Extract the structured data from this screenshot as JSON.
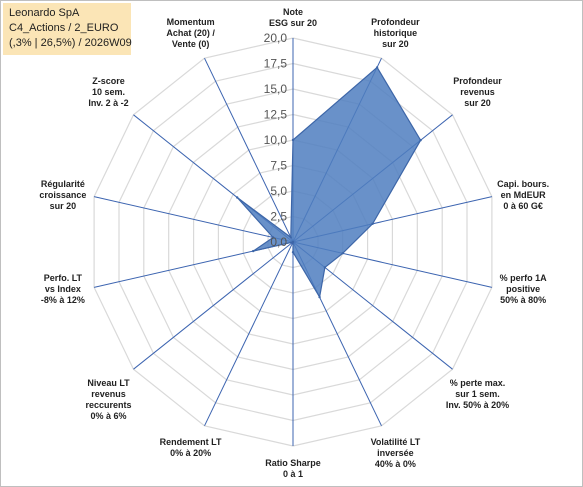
{
  "title_box": {
    "line1": "Leonardo SpA",
    "line2": "C4_Actions / 2_EURO",
    "line3": "(,3% | 26,5%) / 2026W09"
  },
  "chart_data": {
    "type": "radar",
    "rmin": 0,
    "rmax": 20,
    "tick_step": 2.5,
    "tick_labels": [
      "0,0",
      "2,5",
      "5,0",
      "7,5",
      "10,0",
      "12,5",
      "15,0",
      "17,5",
      "20,0"
    ],
    "grid": true,
    "fill_color": "#4f7ec0",
    "line_color": "#3d66a8",
    "grid_color": "#d9d9d9",
    "spoke_color": "#3c64b0",
    "axes": [
      {
        "label": [
          "Note",
          "ESG sur 20"
        ],
        "value": 10
      },
      {
        "label": [
          "Profondeur",
          "historique",
          "sur 20"
        ],
        "value": 19
      },
      {
        "label": [
          "Profondeur",
          "revenus",
          "sur 20"
        ],
        "value": 16
      },
      {
        "label": [
          "Capi. bours.",
          "en MdEUR",
          "0 à 60 G€"
        ],
        "value": 8
      },
      {
        "label": [
          "% perfo 1A",
          "positive",
          "50% à 80%"
        ],
        "value": 5
      },
      {
        "label": [
          "% perte max.",
          "sur 1 sem.",
          "Inv. 50% à 20%"
        ],
        "value": 4
      },
      {
        "label": [
          "Volatilité LT",
          "inversée",
          "40% à 0%"
        ],
        "value": 6
      },
      {
        "label": [
          "Ratio Sharpe",
          "0 à 1"
        ],
        "value": 1
      },
      {
        "label": [
          "Rendement LT",
          "0% à 20%"
        ],
        "value": 0
      },
      {
        "label": [
          "Niveau LT",
          "revenus",
          "reccurents",
          "0% à 6%"
        ],
        "value": 0
      },
      {
        "label": [
          "Perfo. LT",
          "vs Index",
          "-8% à 12%"
        ],
        "value": 4
      },
      {
        "label": [
          "Régularité",
          "croissance",
          "sur 20"
        ],
        "value": 2
      },
      {
        "label": [
          "Z-score",
          "10 sem.",
          "Inv. 2 à -2"
        ],
        "value": 7
      },
      {
        "label": [
          "Momentum",
          "Achat (20) /",
          "Vente (0)"
        ],
        "value": 0.5
      }
    ]
  }
}
